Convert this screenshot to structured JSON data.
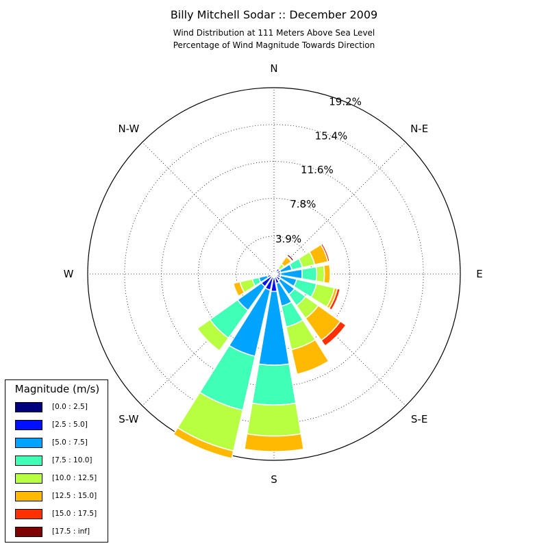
{
  "chart_title": "Billy Mitchell Sodar :: December 2009",
  "subtitle_line1": "Wind Distribution at 111 Meters Above Sea Level",
  "subtitle_line2": "Percentage of Wind Magnitude Towards Direction",
  "chart_data": {
    "type": "windrose",
    "radial_ticks": [
      "3.9%",
      "7.8%",
      "11.6%",
      "15.4%",
      "19.2%"
    ],
    "radial_tick_values": [
      3.9,
      7.8,
      11.6,
      15.4,
      19.2
    ],
    "rmax": 19.2,
    "directions": [
      "N",
      "N-E",
      "E",
      "S-E",
      "S",
      "S-W",
      "W",
      "N-W"
    ],
    "legend_title": "Magnitude (m/s)",
    "bins": [
      "[0.0 : 2.5]",
      "[2.5 : 5.0]",
      "[5.0 : 7.5]",
      "[7.5 : 10.0]",
      "[10.0 : 12.5]",
      "[12.5 : 15.0]",
      "[15.0 : 17.5]",
      "[17.5 : inf]"
    ],
    "colors": [
      "#00007f",
      "#0010ff",
      "#00a4ff",
      "#40ffb7",
      "#b7ff40",
      "#ffb900",
      "#ff3000",
      "#7f0000"
    ],
    "sector_angles_deg": [
      22.5,
      45,
      67.5,
      90,
      112.5,
      135,
      157.5,
      180,
      202.5,
      225,
      247.5
    ],
    "sectors_cumulative_pct": [
      [
        0.2,
        0.3,
        0.3,
        0.3,
        0.3,
        0.3,
        0.3,
        0.3
      ],
      [
        0.3,
        0.7,
        0.7,
        0.7,
        1.3,
        2.2,
        2.3,
        2.5
      ],
      [
        0.3,
        0.7,
        1.9,
        3.0,
        4.3,
        5.7,
        5.9,
        6.0
      ],
      [
        0.3,
        0.7,
        2.9,
        4.4,
        5.2,
        5.8,
        5.9,
        5.9
      ],
      [
        0.3,
        0.7,
        2.4,
        4.5,
        6.4,
        6.7,
        7.0,
        7.1
      ],
      [
        0.3,
        0.8,
        2.6,
        4.0,
        5.6,
        8.4,
        9.1,
        9.1
      ],
      [
        0.3,
        1.0,
        3.4,
        5.6,
        8.0,
        10.6,
        10.6,
        10.6
      ],
      [
        0.3,
        1.8,
        9.4,
        13.5,
        16.7,
        18.3,
        18.3,
        18.3
      ],
      [
        0.3,
        1.7,
        8.7,
        14.4,
        18.7,
        19.5,
        19.5,
        19.5
      ],
      [
        0.3,
        1.6,
        4.6,
        8.1,
        9.7,
        9.7,
        9.7,
        9.7
      ],
      [
        0.3,
        0.7,
        1.6,
        2.3,
        3.6,
        4.3,
        4.3,
        4.3
      ]
    ]
  }
}
